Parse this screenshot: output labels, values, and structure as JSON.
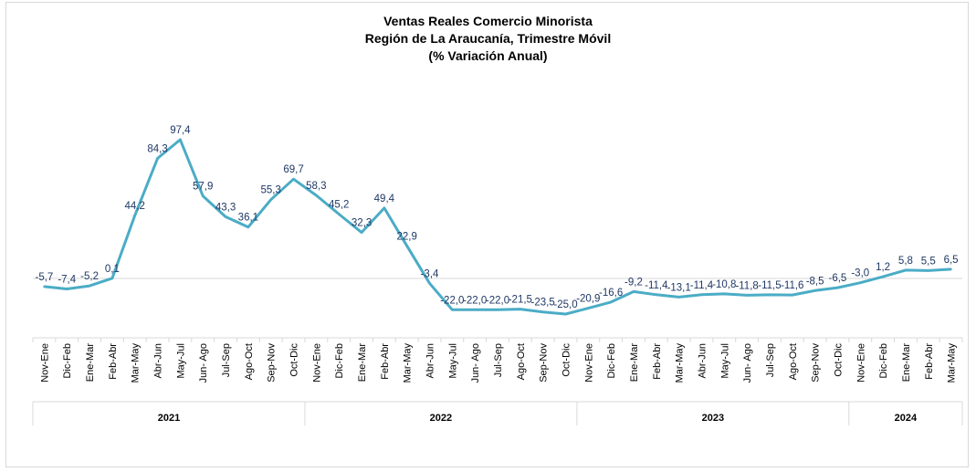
{
  "chart_data": {
    "type": "line",
    "title": "Ventas Reales Comercio Minorista",
    "subtitle_1": "Región de La Araucanía, Trimestre Móvil",
    "subtitle_2": "(% Variación Anual)",
    "line_color": "#4bacc6",
    "label_color": "#1f3864",
    "categories": [
      "Nov-Ene",
      "Dic-Feb",
      "Ene-Mar",
      "Feb-Abr",
      "Mar-May",
      "Abr-Jun",
      "May-Jul",
      "Jun- Ago",
      "Jul-Sep",
      "Ago-Oct",
      "Sep-Nov",
      "Oct-Dic",
      "Nov-Ene",
      "Dic-Feb",
      "Ene-Mar",
      "Feb-Abr",
      "Mar-May",
      "Abr-Jun",
      "May-Jul",
      "Jun- Ago",
      "Jul-Sep",
      "Ago-Oct",
      "Sep-Nov",
      "Oct-Dic",
      "Nov-Ene",
      "Dic-Feb",
      "Ene-Mar",
      "Feb-Abr",
      "Mar-May",
      "Abr-Jun",
      "May-Jul",
      "Jun- Ago",
      "Jul-Sep",
      "Ago-Oct",
      "Sep-Nov",
      "Oct-Dic",
      "Nov-Ene",
      "Dic-Feb",
      "Ene-Mar",
      "Feb-Abr",
      "Mar-May"
    ],
    "values": [
      -5.7,
      -7.4,
      -5.2,
      0.1,
      44.2,
      84.3,
      97.4,
      57.9,
      43.3,
      36.1,
      55.3,
      69.7,
      58.3,
      45.2,
      32.3,
      49.4,
      22.9,
      -3.4,
      -22.0,
      -22.0,
      -22.0,
      -21.5,
      -23.5,
      -25.0,
      -20.9,
      -16.6,
      -9.2,
      -11.4,
      -13.1,
      -11.4,
      -10.8,
      -11.8,
      -11.5,
      -11.6,
      -8.5,
      -6.5,
      -3.0,
      1.2,
      5.8,
      5.5,
      6.5
    ],
    "labels": [
      "-5,7",
      "-7,4",
      "-5,2",
      "0,1",
      "44,2",
      "84,3",
      "97,4",
      "57,9",
      "43,3",
      "36,1",
      "55,3",
      "69,7",
      "58,3",
      "45,2",
      "32,3",
      "49,4",
      "22,9",
      "-3,4",
      "-22,0",
      "-22,0",
      "-22,0",
      "-21,5",
      "-23,5",
      "-25,0",
      "-20,9",
      "-16,6",
      "-9,2",
      "-11,4",
      "-13,1",
      "-11,4",
      "-10,8",
      "-11,8",
      "-11,5",
      "-11,6",
      "-8,5",
      "-6,5",
      "-3,0",
      "1,2",
      "5,8",
      "5,5",
      "6,5"
    ],
    "years": [
      {
        "label": "2021",
        "start": 0,
        "count": 12
      },
      {
        "label": "2022",
        "start": 12,
        "count": 12
      },
      {
        "label": "2023",
        "start": 24,
        "count": 12
      },
      {
        "label": "2024",
        "start": 36,
        "count": 5
      }
    ]
  }
}
